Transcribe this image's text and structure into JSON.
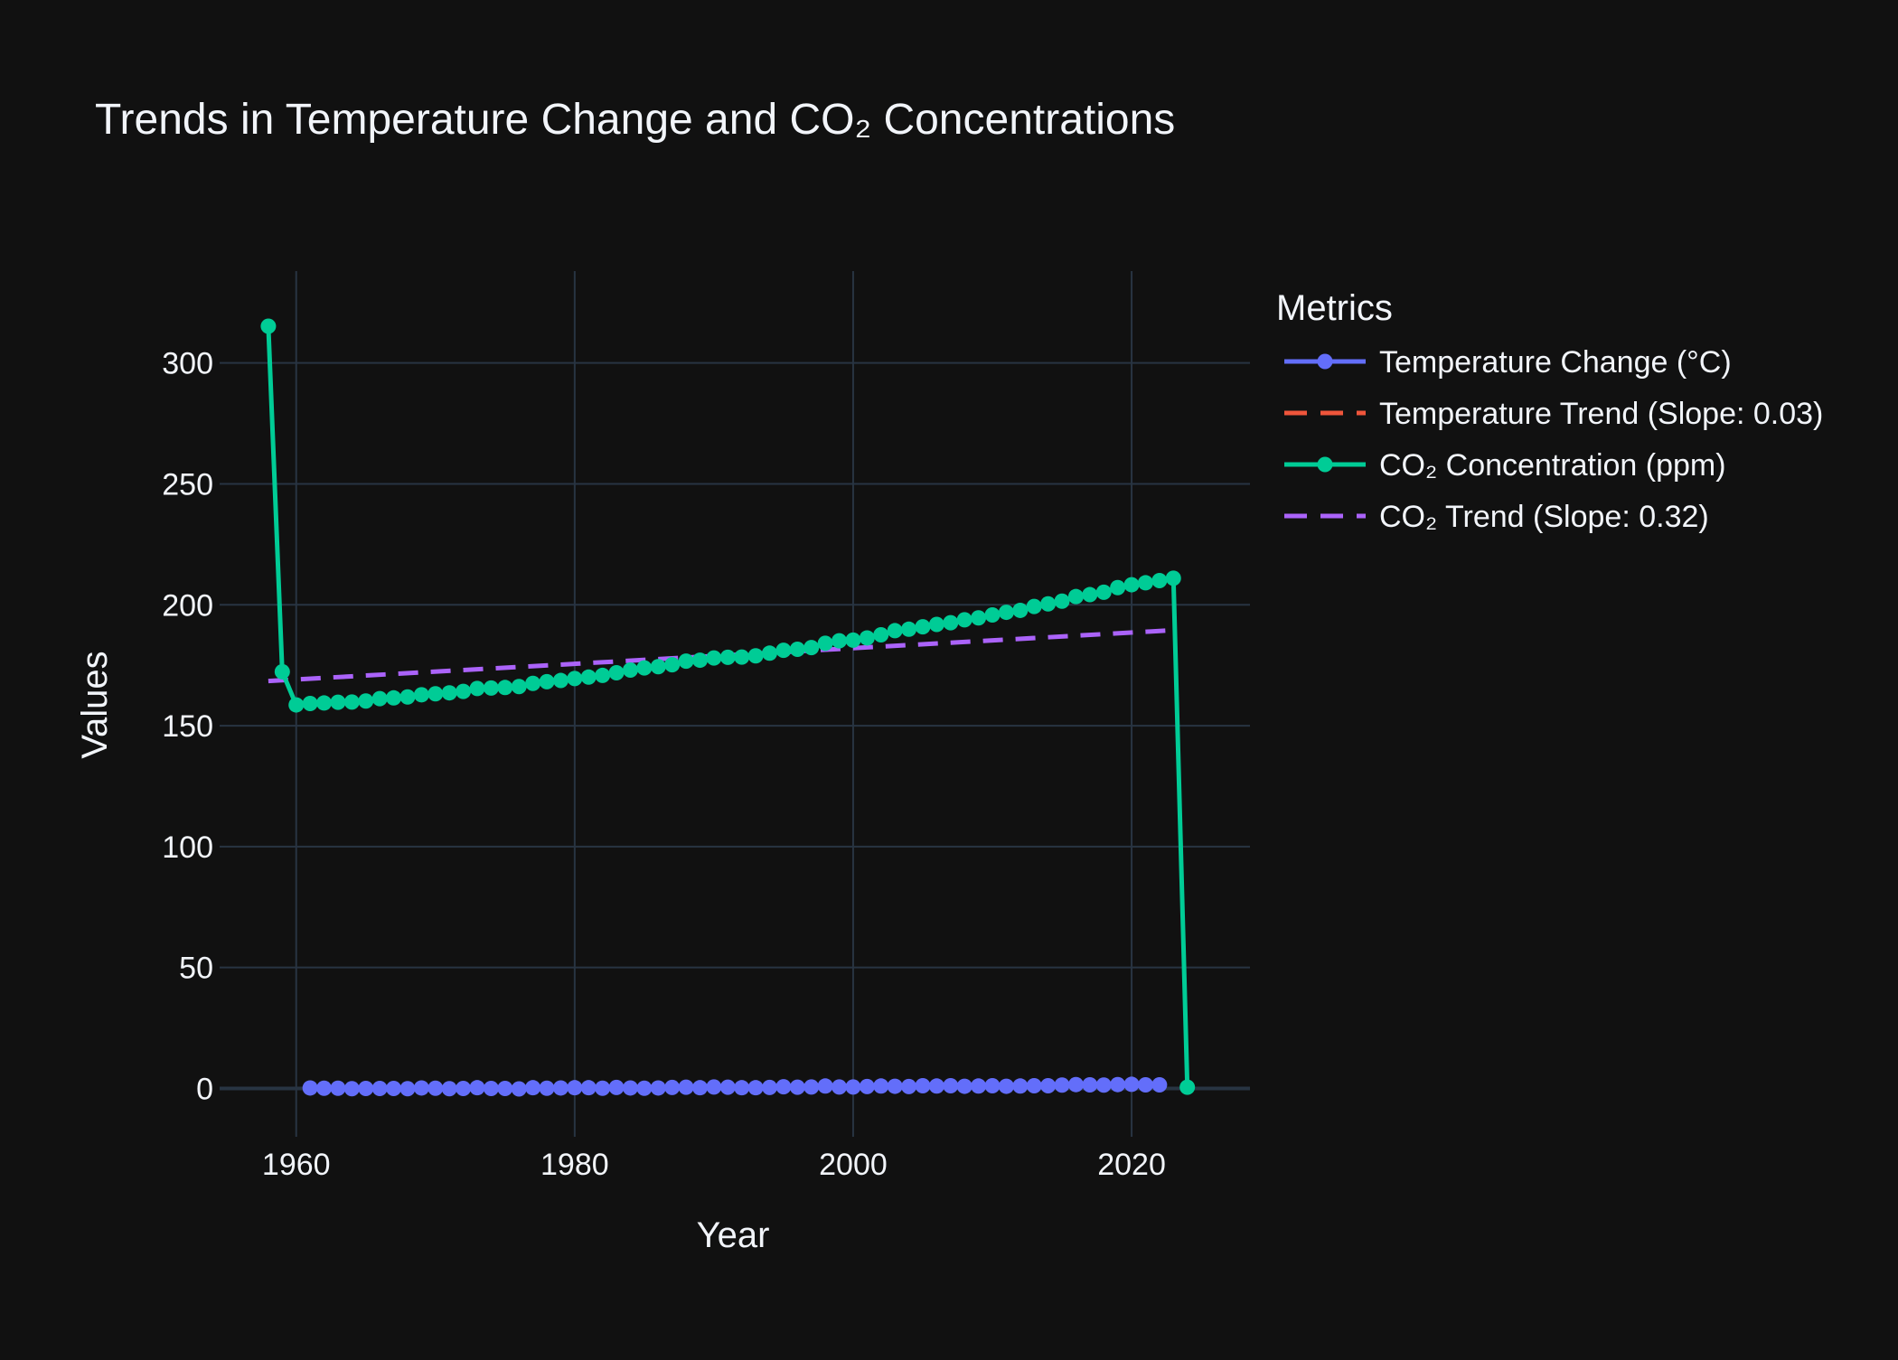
{
  "chart_data": {
    "type": "line",
    "title": "Trends in Temperature Change and CO₂ Concentrations",
    "xlabel": "Year",
    "ylabel": "Values",
    "xlim": [
      1954.5,
      2028.5
    ],
    "ylim": [
      -20,
      338
    ],
    "xticks": [
      1960,
      1980,
      2000,
      2020
    ],
    "yticks": [
      0,
      50,
      100,
      150,
      200,
      250,
      300
    ],
    "grid": true,
    "legend": {
      "title": "Metrics",
      "placement": "top-right outside"
    },
    "series": [
      {
        "name": "Temperature Change (°C)",
        "style": "line+markers",
        "color": "#636efa",
        "x": [
          1961,
          1962,
          1963,
          1964,
          1965,
          1966,
          1967,
          1968,
          1969,
          1970,
          1971,
          1972,
          1973,
          1974,
          1975,
          1976,
          1977,
          1978,
          1979,
          1980,
          1981,
          1982,
          1983,
          1984,
          1985,
          1986,
          1987,
          1988,
          1989,
          1990,
          1991,
          1992,
          1993,
          1994,
          1995,
          1996,
          1997,
          1998,
          1999,
          2000,
          2001,
          2002,
          2003,
          2004,
          2005,
          2006,
          2007,
          2008,
          2009,
          2010,
          2011,
          2012,
          2013,
          2014,
          2015,
          2016,
          2017,
          2018,
          2019,
          2020,
          2021,
          2022
        ],
        "y": [
          0.2,
          0.1,
          0.1,
          -0.1,
          0,
          0,
          0,
          -0.1,
          0.2,
          0.1,
          -0.1,
          0,
          0.3,
          0,
          0,
          -0.2,
          0.3,
          0.1,
          0.2,
          0.3,
          0.3,
          0.1,
          0.4,
          0.2,
          0.1,
          0.2,
          0.4,
          0.5,
          0.3,
          0.6,
          0.5,
          0.3,
          0.3,
          0.4,
          0.7,
          0.5,
          0.6,
          1,
          0.6,
          0.6,
          0.8,
          1,
          0.9,
          0.8,
          1.1,
          1,
          1.1,
          0.9,
          1,
          1.1,
          0.9,
          1,
          1.1,
          1.1,
          1.4,
          1.6,
          1.5,
          1.4,
          1.6,
          1.7,
          1.5,
          1.5
        ]
      },
      {
        "name": "Temperature Trend (Slope: 0.03)",
        "style": "dash",
        "color": "#ef553b",
        "x": [
          1961,
          2022
        ],
        "y": [
          -0.1,
          1.7
        ]
      },
      {
        "name": "CO₂ Concentration (ppm)",
        "style": "line+markers",
        "color": "#00cc96",
        "x": [
          1958,
          1959,
          1960,
          1961,
          1962,
          1963,
          1964,
          1965,
          1966,
          1967,
          1968,
          1969,
          1970,
          1971,
          1972,
          1973,
          1974,
          1975,
          1976,
          1977,
          1978,
          1979,
          1980,
          1981,
          1982,
          1983,
          1984,
          1985,
          1986,
          1987,
          1988,
          1989,
          1990,
          1991,
          1992,
          1993,
          1994,
          1995,
          1996,
          1997,
          1998,
          1999,
          2000,
          2001,
          2002,
          2003,
          2004,
          2005,
          2006,
          2007,
          2008,
          2009,
          2010,
          2011,
          2012,
          2013,
          2014,
          2015,
          2016,
          2017,
          2018,
          2019,
          2020,
          2021,
          2022,
          2023,
          2024
        ],
        "y": [
          315.2,
          172.3,
          158.6,
          159.2,
          159.4,
          159.7,
          159.8,
          160.2,
          161.2,
          161.5,
          161.9,
          162.8,
          163.2,
          163.6,
          164.2,
          165.4,
          165.6,
          165.8,
          166.2,
          167.5,
          168.2,
          168.7,
          169.5,
          170.1,
          170.8,
          171.9,
          173,
          173.9,
          174.4,
          175.2,
          176.7,
          177.1,
          178,
          178.3,
          178.4,
          178.9,
          180,
          181.2,
          181.6,
          182.3,
          184.1,
          185.1,
          185.4,
          186.3,
          187.6,
          189.3,
          189.9,
          190.9,
          191.9,
          192.6,
          193.8,
          194.6,
          195.8,
          196.9,
          197.7,
          199.3,
          200.4,
          201.5,
          203.4,
          204.2,
          205.2,
          207.1,
          208.3,
          209.1,
          210,
          211,
          0.5
        ]
      },
      {
        "name": "CO₂ Trend (Slope: 0.32)",
        "style": "dash",
        "color": "#ab63fa",
        "x": [
          1958,
          2023
        ],
        "y": [
          168.5,
          189.5
        ]
      }
    ]
  }
}
